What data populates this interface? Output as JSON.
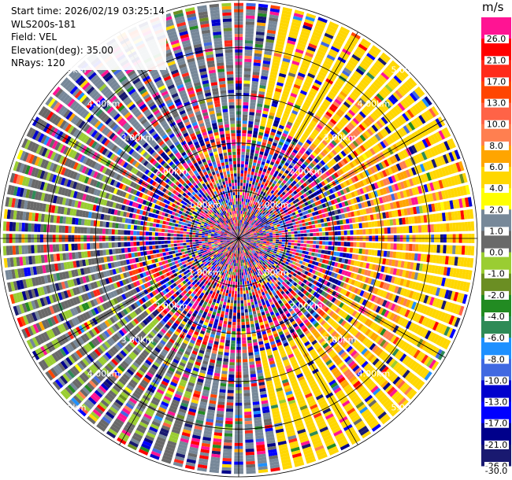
{
  "header": {
    "start_time": "Start time: 2026/02/19 03:25:14",
    "instrument": "WLS200s-181",
    "field": "Field: VEL",
    "elevation": "Elevation(deg): 35.00",
    "nrays": "NRays: 120"
  },
  "colorbar": {
    "unit": "m/s",
    "bins": [
      {
        "label": "26.0",
        "color": "#ff1493"
      },
      {
        "label": "21.0",
        "color": "#ff0000"
      },
      {
        "label": "17.0",
        "color": "#ff2a1a"
      },
      {
        "label": "13.0",
        "color": "#ff4500"
      },
      {
        "label": "10.0",
        "color": "#ff6347"
      },
      {
        "label": "8.0",
        "color": "#ff7f50"
      },
      {
        "label": "6.0",
        "color": "#ffa500"
      },
      {
        "label": "4.0",
        "color": "#ffd700"
      },
      {
        "label": "2.0",
        "color": "#ffff00"
      },
      {
        "label": "1.0",
        "color": "#778899"
      },
      {
        "label": "0.0",
        "color": "#696969"
      },
      {
        "label": "-1.0",
        "color": "#9acd32"
      },
      {
        "label": "-2.0",
        "color": "#6b8e23"
      },
      {
        "label": "-4.0",
        "color": "#228b22"
      },
      {
        "label": "-6.0",
        "color": "#2e8b57"
      },
      {
        "label": "-8.0",
        "color": "#1e90ff"
      },
      {
        "label": "-10.0",
        "color": "#4169e1"
      },
      {
        "label": "-13.0",
        "color": "#0000cd"
      },
      {
        "label": "-17.0",
        "color": "#0000ff"
      },
      {
        "label": "-21.0",
        "color": "#00008b"
      },
      {
        "label": "-26.0",
        "color": "#191970"
      },
      {
        "label": "-30.0",
        "color": ""
      }
    ]
  },
  "chart_data": {
    "type": "heatmap",
    "projection": "polar-ppi",
    "field": "VEL",
    "nrays": 120,
    "range_rings": [
      "1.00km",
      "2.00km",
      "3.00km",
      "4.00km",
      "5.00km"
    ],
    "range_ring_values_km": [
      1,
      2,
      3,
      4,
      5
    ],
    "max_range_km": 5.0,
    "azimuth_lines_deg": [
      0,
      30,
      60,
      90,
      120,
      150,
      180,
      210,
      240,
      270,
      300,
      330
    ],
    "value_range": [
      -30,
      30
    ],
    "pattern": {
      "inner_noise_radius_km": 2.4,
      "positive_velocity_sector_center_deg": 90,
      "positive_velocity_sector_halfwidth_deg": 80,
      "negative_velocity_sector_center_deg": 250,
      "negative_velocity_sector_halfwidth_deg": 55
    }
  }
}
